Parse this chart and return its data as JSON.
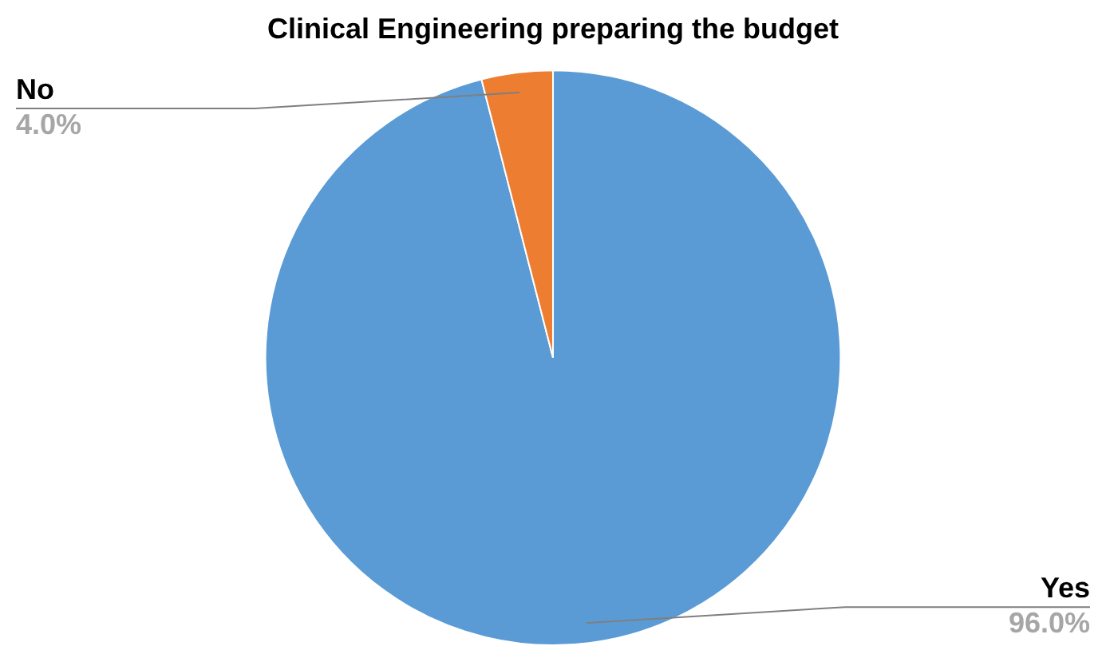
{
  "chart_data": {
    "type": "pie",
    "title": "Clinical Engineering preparing the budget",
    "categories": [
      "Yes",
      "No"
    ],
    "values": [
      96,
      4
    ],
    "colors": [
      "#5b9bd5",
      "#ed7d31"
    ],
    "value_labels": [
      "96.0%",
      "4.0%"
    ],
    "legend": false
  }
}
